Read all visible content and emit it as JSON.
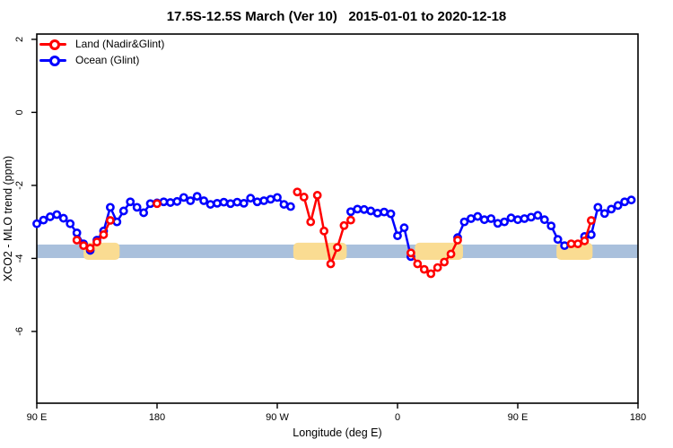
{
  "title": "17.5S-12.5S March (Ver 10)   2015-01-01 to 2020-12-18",
  "legend": {
    "items": [
      {
        "label": "Land (Nadir&Glint)",
        "color": "#ff0000",
        "marker": "open-circle-on-line"
      },
      {
        "label": "Ocean (Glint)",
        "color": "#0000ff",
        "marker": "open-circle-on-line"
      }
    ]
  },
  "axes": {
    "x_label": "Longitude (deg E)",
    "y_label": "XCO2 - MLO trend (ppm)",
    "x_ticks": [
      {
        "deg": 0,
        "label": "90 E"
      },
      {
        "deg": 90,
        "label": "180"
      },
      {
        "deg": 180,
        "label": "90 W"
      },
      {
        "deg": 270,
        "label": "0"
      },
      {
        "deg": 360,
        "label": "90 E"
      },
      {
        "deg": 450,
        "label": "180"
      }
    ],
    "y_ticks": [
      {
        "value": 2,
        "label": "2"
      },
      {
        "value": 0,
        "label": "0"
      },
      {
        "value": -2,
        "label": "-2"
      },
      {
        "value": -4,
        "label": "-4"
      },
      {
        "value": -6,
        "label": "-6"
      }
    ]
  },
  "chart_data": {
    "type": "line",
    "title": "17.5S-12.5S March (Ver 10)   2015-01-01 to 2020-12-18",
    "xlabel": "Longitude (deg E)",
    "ylabel": "XCO2 - MLO trend (ppm)",
    "x_unit": "degrees eastward from 90E (axis wraps: 90E > 180 > 90W > 0 > 90E > 180, 450 deg total)",
    "xlim_deg": [
      0,
      450
    ],
    "ylim": [
      -7.9,
      2.1
    ],
    "grid": false,
    "legend_position": "top-left",
    "marker_style": "open circles, white fill, colored ring, connected by thick lines",
    "band": {
      "description": "horizontal shaded band across full width",
      "color": "#a9c0dc",
      "value_top": -3.62,
      "value_bottom": -3.99
    },
    "land_patches": {
      "description": "shaded longitude ranges (land sectors) drawn over the band",
      "color": "#fadc92",
      "value_top": -3.57,
      "value_bottom": -4.04,
      "ranges_deg": [
        [
          35,
          62
        ],
        [
          192,
          232
        ],
        [
          283,
          319
        ],
        [
          389,
          416
        ]
      ]
    },
    "series": [
      {
        "name": "Ocean (Glint)",
        "color": "#0000ff",
        "x_start_deg": 0,
        "x_step_deg": 5,
        "values": [
          -3.05,
          -2.95,
          -2.86,
          -2.8,
          -2.9,
          -3.05,
          -3.3,
          -3.6,
          -3.78,
          -3.5,
          -3.25,
          -2.6,
          -3.0,
          -2.7,
          -2.45,
          -2.6,
          -2.75,
          -2.5,
          -2.48,
          -2.45,
          -2.47,
          -2.44,
          -2.33,
          -2.42,
          -2.3,
          -2.42,
          -2.52,
          -2.49,
          -2.46,
          -2.5,
          -2.46,
          -2.49,
          -2.35,
          -2.45,
          -2.42,
          -2.38,
          -2.33,
          -2.52,
          -2.58,
          null,
          null,
          null,
          null,
          null,
          null,
          null,
          null,
          -2.72,
          -2.65,
          -2.66,
          -2.7,
          -2.76,
          -2.73,
          -2.78,
          -3.38,
          -3.16,
          -3.95,
          null,
          null,
          null,
          null,
          null,
          null,
          -3.43,
          -3.0,
          -2.91,
          -2.85,
          -2.94,
          -2.91,
          -3.04,
          -3.0,
          -2.89,
          -2.94,
          -2.91,
          -2.87,
          -2.82,
          -2.94,
          -3.11,
          -3.48,
          -3.65,
          null,
          null,
          -3.4,
          -3.35,
          -2.6,
          -2.77,
          -2.65,
          -2.55,
          -2.45,
          -2.4
        ]
      },
      {
        "name": "Land (Nadir&Glint)",
        "color": "#ff0000",
        "segments": [
          [
            [
              30,
              -3.5
            ],
            [
              35,
              -3.65
            ],
            [
              40,
              -3.72
            ],
            [
              45,
              -3.55
            ],
            [
              50,
              -3.35
            ],
            [
              55,
              -2.96
            ]
          ],
          [
            [
              90,
              -2.5
            ]
          ],
          [
            [
              195,
              -2.18
            ],
            [
              200,
              -2.32
            ],
            [
              205,
              -3.0
            ],
            [
              210,
              -2.27
            ],
            [
              215,
              -3.25
            ],
            [
              220,
              -4.15
            ],
            [
              225,
              -3.7
            ],
            [
              230,
              -3.1
            ],
            [
              235,
              -2.95
            ]
          ],
          [
            [
              280,
              -3.85
            ],
            [
              285,
              -4.15
            ],
            [
              290,
              -4.3
            ],
            [
              295,
              -4.42
            ],
            [
              300,
              -4.25
            ],
            [
              305,
              -4.1
            ],
            [
              310,
              -3.88
            ],
            [
              315,
              -3.5
            ]
          ],
          [
            [
              400,
              -3.6
            ],
            [
              405,
              -3.6
            ],
            [
              410,
              -3.52
            ],
            [
              415,
              -2.96
            ]
          ]
        ]
      }
    ]
  }
}
